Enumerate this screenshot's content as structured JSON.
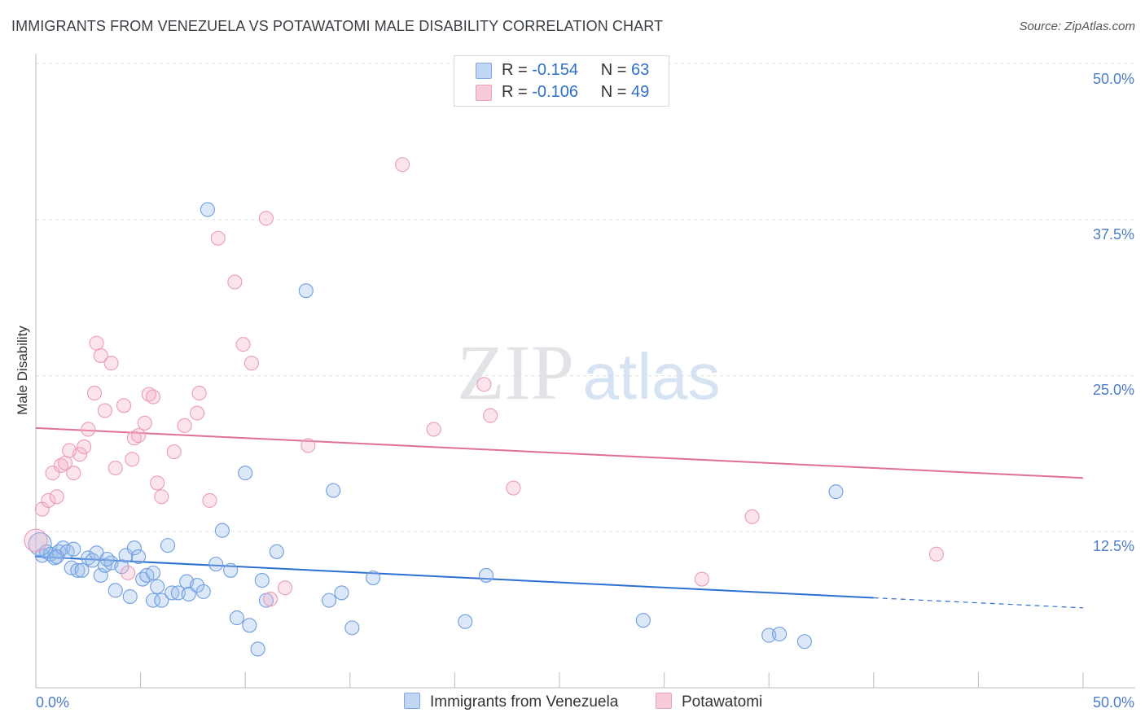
{
  "title": "IMMIGRANTS FROM VENEZUELA VS POTAWATOMI MALE DISABILITY CORRELATION CHART",
  "source": "Source: ZipAtlas.com",
  "watermark": {
    "zip": "ZIP",
    "atlas": "atlas"
  },
  "legend": {
    "r_label": "R =",
    "n_label": "N =",
    "rows": [
      {
        "name": "Immigrants from Venezuela",
        "r": "-0.154",
        "n": "63",
        "color": "#5b8fd6"
      },
      {
        "name": "Potawatomi",
        "r": "-0.106",
        "n": "49",
        "color": "#e887a8"
      }
    ]
  },
  "chart_data": {
    "type": "scatter",
    "title": "IMMIGRANTS FROM VENEZUELA VS POTAWATOMI MALE DISABILITY CORRELATION CHART",
    "xlabel": "",
    "ylabel": "Male Disability",
    "xlim": [
      0,
      50
    ],
    "ylim": [
      0,
      50
    ],
    "x_tick_labels": [
      "0.0%",
      "50.0%"
    ],
    "y_ticks": [
      12.5,
      25.0,
      37.5,
      50.0
    ],
    "y_tick_labels": [
      "12.5%",
      "25.0%",
      "37.5%",
      "50.0%"
    ],
    "grid": true,
    "series": [
      {
        "name": "Immigrants from Venezuela",
        "color": "#5b8fd6",
        "trend": {
          "x0": 0,
          "y0": 10.5,
          "x1": 40,
          "y1": 7.2,
          "dashed_to_x": 50,
          "dashed_to_y": 6.4
        },
        "points": [
          [
            0.3,
            10.6
          ],
          [
            0.5,
            10.9
          ],
          [
            0.7,
            10.7
          ],
          [
            0.9,
            10.4
          ],
          [
            1.1,
            10.9
          ],
          [
            1.3,
            11.2
          ],
          [
            1.5,
            10.9
          ],
          [
            1.7,
            9.6
          ],
          [
            1.8,
            11.1
          ],
          [
            2.0,
            9.4
          ],
          [
            2.2,
            9.4
          ],
          [
            2.5,
            10.4
          ],
          [
            2.7,
            10.2
          ],
          [
            2.9,
            10.8
          ],
          [
            3.1,
            9.0
          ],
          [
            3.3,
            9.8
          ],
          [
            3.6,
            10.0
          ],
          [
            3.8,
            7.8
          ],
          [
            4.1,
            9.7
          ],
          [
            4.3,
            10.6
          ],
          [
            4.5,
            7.3
          ],
          [
            4.7,
            11.2
          ],
          [
            4.9,
            10.5
          ],
          [
            5.1,
            8.7
          ],
          [
            5.3,
            9.0
          ],
          [
            5.6,
            7.0
          ],
          [
            5.8,
            8.1
          ],
          [
            6.0,
            7.0
          ],
          [
            6.3,
            11.4
          ],
          [
            6.5,
            7.6
          ],
          [
            6.8,
            7.6
          ],
          [
            7.2,
            8.5
          ],
          [
            7.3,
            7.5
          ],
          [
            7.7,
            8.2
          ],
          [
            8.0,
            7.7
          ],
          [
            8.2,
            38.3
          ],
          [
            8.6,
            9.9
          ],
          [
            8.9,
            12.6
          ],
          [
            9.3,
            9.4
          ],
          [
            9.6,
            5.6
          ],
          [
            10.0,
            17.2
          ],
          [
            10.2,
            5.0
          ],
          [
            10.6,
            3.1
          ],
          [
            10.8,
            8.6
          ],
          [
            11.0,
            7.0
          ],
          [
            11.5,
            10.9
          ],
          [
            12.9,
            31.8
          ],
          [
            14.0,
            7.0
          ],
          [
            14.2,
            15.8
          ],
          [
            14.6,
            7.6
          ],
          [
            15.1,
            4.8
          ],
          [
            16.1,
            8.8
          ],
          [
            20.5,
            5.3
          ],
          [
            21.5,
            9.0
          ],
          [
            29.0,
            5.4
          ],
          [
            35.0,
            4.2
          ],
          [
            35.5,
            4.3
          ],
          [
            36.7,
            3.7
          ],
          [
            38.2,
            15.7
          ],
          [
            0.2,
            11.5
          ],
          [
            1.0,
            10.5
          ],
          [
            3.4,
            10.3
          ],
          [
            5.6,
            9.2
          ]
        ]
      },
      {
        "name": "Potawatomi",
        "color": "#e887a8",
        "trend": {
          "x0": 0,
          "y0": 20.8,
          "x1": 50,
          "y1": 16.8
        },
        "points": [
          [
            0.3,
            14.3
          ],
          [
            0.6,
            15.0
          ],
          [
            0.8,
            17.2
          ],
          [
            1.0,
            15.3
          ],
          [
            1.2,
            17.8
          ],
          [
            1.4,
            18.0
          ],
          [
            1.6,
            19.0
          ],
          [
            1.8,
            17.2
          ],
          [
            2.1,
            18.7
          ],
          [
            2.3,
            19.3
          ],
          [
            2.5,
            20.7
          ],
          [
            2.8,
            23.6
          ],
          [
            2.9,
            27.6
          ],
          [
            3.1,
            26.6
          ],
          [
            3.3,
            22.2
          ],
          [
            3.6,
            26.0
          ],
          [
            3.8,
            17.6
          ],
          [
            4.2,
            22.6
          ],
          [
            4.4,
            9.2
          ],
          [
            4.6,
            18.3
          ],
          [
            4.7,
            20.0
          ],
          [
            4.9,
            20.2
          ],
          [
            5.2,
            21.2
          ],
          [
            5.4,
            23.5
          ],
          [
            5.6,
            23.3
          ],
          [
            5.8,
            16.4
          ],
          [
            6.0,
            15.3
          ],
          [
            6.6,
            18.9
          ],
          [
            7.1,
            21.0
          ],
          [
            7.7,
            22.0
          ],
          [
            7.8,
            23.6
          ],
          [
            8.3,
            15.0
          ],
          [
            8.7,
            36.0
          ],
          [
            9.5,
            32.5
          ],
          [
            9.9,
            27.5
          ],
          [
            10.3,
            26.0
          ],
          [
            11.0,
            37.6
          ],
          [
            11.2,
            7.1
          ],
          [
            11.9,
            8.0
          ],
          [
            13.0,
            19.4
          ],
          [
            17.5,
            41.9
          ],
          [
            19.0,
            20.7
          ],
          [
            21.4,
            24.3
          ],
          [
            21.7,
            21.8
          ],
          [
            22.8,
            16.0
          ],
          [
            31.8,
            8.7
          ],
          [
            34.2,
            13.7
          ],
          [
            43.0,
            10.7
          ],
          [
            0.0,
            11.8
          ]
        ]
      }
    ]
  }
}
